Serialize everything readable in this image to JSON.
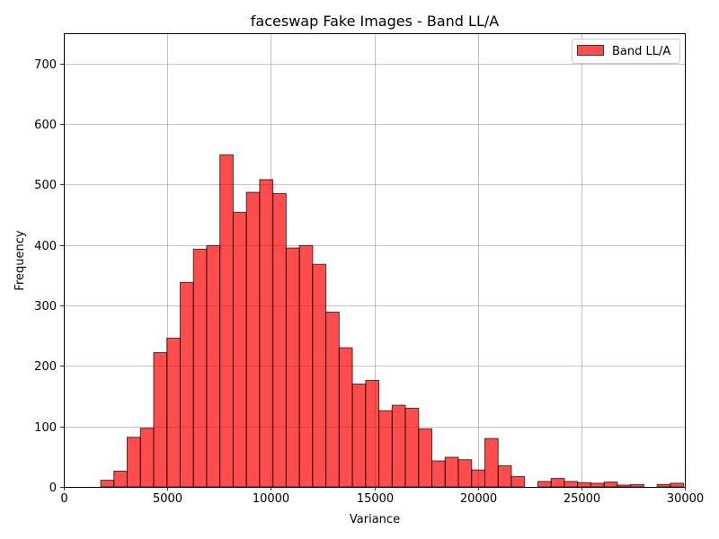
{
  "chart_data": {
    "type": "bar",
    "title": "faceswap Fake Images - Band LL/A",
    "xlabel": "Variance",
    "ylabel": "Frequency",
    "xlim": [
      0,
      30000
    ],
    "ylim": [
      0,
      750
    ],
    "xticks": [
      0,
      5000,
      10000,
      15000,
      20000,
      25000,
      30000
    ],
    "yticks": [
      0,
      100,
      200,
      300,
      400,
      500,
      600,
      700
    ],
    "grid": true,
    "legend_position": "top-right",
    "series": [
      {
        "name": "Band LL/A",
        "color": "#ff0000",
        "bin_width": 640,
        "bin_starts": [
          1780,
          2420,
          3060,
          3700,
          4340,
          4980,
          5620,
          6260,
          6900,
          7540,
          8180,
          8820,
          9460,
          10100,
          10740,
          11380,
          12020,
          12660,
          13300,
          13940,
          14580,
          15220,
          15860,
          16500,
          17140,
          17780,
          18420,
          19060,
          19700,
          20340,
          20980,
          21620,
          22260,
          22900,
          23540,
          24180,
          24820,
          25460,
          26100,
          26740,
          27380,
          28020,
          28660,
          29300
        ],
        "values": [
          11,
          26,
          82,
          97,
          222,
          246,
          338,
          393,
          399,
          549,
          454,
          487,
          508,
          485,
          395,
          399,
          368,
          289,
          230,
          170,
          176,
          126,
          135,
          130,
          96,
          43,
          49,
          45,
          28,
          80,
          35,
          17,
          0,
          9,
          14,
          9,
          7,
          6,
          8,
          3,
          4,
          0,
          4,
          6
        ]
      }
    ]
  }
}
